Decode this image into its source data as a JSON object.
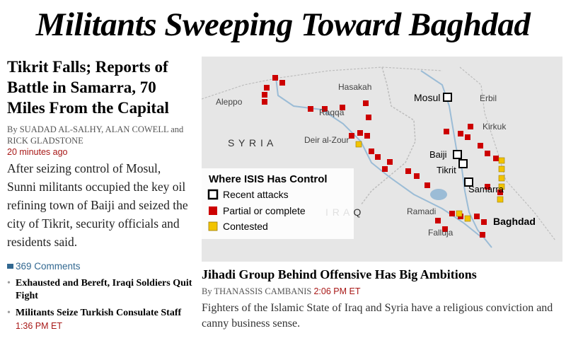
{
  "headline": "Militants Sweeping Toward Baghdad",
  "lead_story": {
    "title": "Tikrit Falls; Reports of Battle in Samarra, 70 Miles From the Capital",
    "byline": "By SUADAD AL-SALHY, ALAN COWELL and RICK GLADSTONE",
    "timestamp": "20 minutes ago",
    "summary": "After seizing control of Mosul, Sunni militants occupied the key oil refining town of Baiji and seized the city of Tikrit, security officials and residents said.",
    "comments": "369 Comments"
  },
  "related": [
    {
      "title": "Exhausted and Bereft, Iraqi Soldiers Quit Fight",
      "time": ""
    },
    {
      "title": "Militants Seize Turkish Consulate Staff",
      "time": "1:36 PM ET"
    }
  ],
  "map": {
    "legend_title": "Where ISIS Has Control",
    "legend": [
      {
        "label": "Recent attacks",
        "icon": "open-square"
      },
      {
        "label": "Partial or complete",
        "color": "#cc0000"
      },
      {
        "label": "Contested",
        "color": "#f2c400"
      }
    ],
    "countries": [
      "S Y R I A",
      "I R A Q"
    ],
    "cities": [
      "Hasakah",
      "Mosul",
      "Erbil",
      "Aleppo",
      "Raqqa",
      "Kirkuk",
      "Deir al-Zour",
      "Baiji",
      "Tikrit",
      "Samarra",
      "Ramadi",
      "Baghdad",
      "Falluja"
    ],
    "colors": {
      "land": "#e4e4e4",
      "river": "#9bbcd6",
      "partial": "#cc0000",
      "contested": "#f2c400"
    }
  },
  "second_story": {
    "title": "Jihadi Group Behind Offensive Has Big Ambitions",
    "byline": "By THANASSIS CAMBANIS",
    "timestamp": "2:06 PM ET",
    "summary": "Fighters of the Islamic State of Iraq and Syria have a religious conviction and canny business sense."
  }
}
